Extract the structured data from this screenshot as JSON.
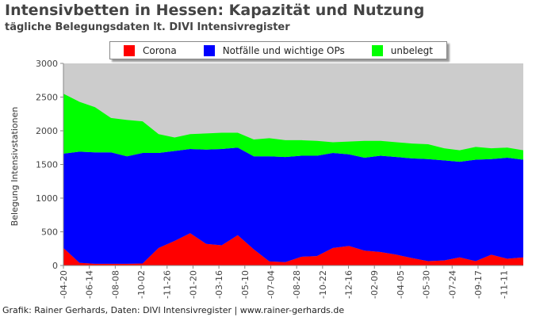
{
  "title": "Intensivbetten in Hessen: Kapazität und Nutzung",
  "subtitle": "tägliche Belegungsdaten lt. DIVI Intensivregister",
  "footer": "Grafik: Rainer Gerhards, Daten: DIVI Intensivregister | www.rainer-gerhards.de",
  "colors": {
    "corona": "#ff0000",
    "notfall": "#0000ff",
    "unbelegt": "#00ff00",
    "background": "#cccccc"
  },
  "chart_data": {
    "type": "area",
    "stacked": true,
    "title": "Intensivbetten in Hessen: Kapazität und Nutzung",
    "ylabel": "Belegung Intensivstationen",
    "xlabel": "",
    "ylim": [
      0,
      3000
    ],
    "yticks": [
      "0",
      "500",
      "1000",
      "1500",
      "2000",
      "2500",
      "3000"
    ],
    "xlim": [
      "2020-04-20",
      "2022-12-22"
    ],
    "xticks": [
      "-04-20",
      "-06-14",
      "-08-08",
      "-10-02",
      "-11-26",
      "-01-20",
      "-03-16",
      "-05-10",
      "-07-04",
      "-08-28",
      "-10-22",
      "-12-16",
      "-02-09",
      "-04-05",
      "-05-30",
      "-07-24",
      "-09-17",
      "-11-11"
    ],
    "legend_position": "top",
    "x": [
      "2020-04-20",
      "2020-05-24",
      "2020-06-26",
      "2020-07-30",
      "2020-09-02",
      "2020-10-05",
      "2020-11-08",
      "2020-12-12",
      "2021-01-14",
      "2021-02-17",
      "2021-03-22",
      "2021-04-25",
      "2021-05-29",
      "2021-07-01",
      "2021-08-04",
      "2021-09-07",
      "2021-10-10",
      "2021-11-13",
      "2021-12-17",
      "2022-01-19",
      "2022-02-22",
      "2022-03-28",
      "2022-04-30",
      "2022-06-03",
      "2022-07-07",
      "2022-08-09",
      "2022-09-12",
      "2022-10-15",
      "2022-11-18",
      "2022-12-22"
    ],
    "series": [
      {
        "name": "Corona",
        "color": "#ff0000",
        "values": [
          260,
          40,
          25,
          25,
          25,
          30,
          260,
          365,
          480,
          320,
          300,
          450,
          240,
          60,
          50,
          130,
          140,
          260,
          290,
          220,
          200,
          160,
          110,
          65,
          75,
          120,
          65,
          160,
          100,
          120
        ]
      },
      {
        "name": "Notfälle und wichtige OPs",
        "color": "#0000ff",
        "values": [
          1400,
          1650,
          1655,
          1655,
          1595,
          1640,
          1410,
          1335,
          1250,
          1400,
          1430,
          1300,
          1380,
          1560,
          1560,
          1500,
          1490,
          1410,
          1360,
          1380,
          1430,
          1450,
          1480,
          1515,
          1485,
          1420,
          1505,
          1420,
          1500,
          1450
        ]
      },
      {
        "name": "unbelegt",
        "color": "#00ff00",
        "values": [
          890,
          740,
          670,
          510,
          540,
          470,
          280,
          200,
          220,
          240,
          240,
          220,
          250,
          270,
          250,
          230,
          220,
          160,
          190,
          250,
          220,
          220,
          220,
          220,
          180,
          170,
          190,
          160,
          150,
          140
        ]
      }
    ]
  }
}
